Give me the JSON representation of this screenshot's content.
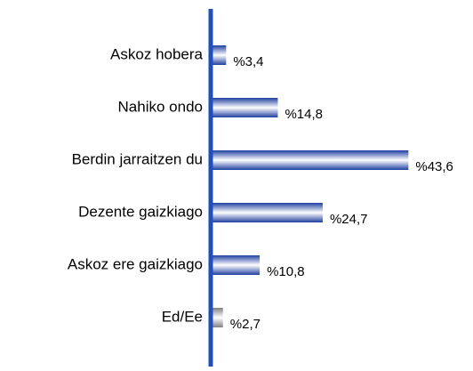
{
  "chart_data": {
    "type": "bar",
    "orientation": "horizontal",
    "categories": [
      "Askoz hobera",
      "Nahiko ondo",
      "Berdin jarraitzen du",
      "Dezente gaizkiago",
      "Askoz ere gaizkiago",
      "Ed/Ee"
    ],
    "values": [
      3.4,
      14.8,
      43.6,
      24.7,
      10.8,
      2.7
    ],
    "value_labels": [
      "%3,4",
      "%14,8",
      "%43,6",
      "%24,7",
      "%10,8",
      "%2,7"
    ],
    "colors": [
      "#1f3f9f",
      "#1f3f9f",
      "#1f3f9f",
      "#1f3f9f",
      "#1f3f9f",
      "#808080"
    ],
    "axis_color": "#1f4fbf",
    "xlim": [
      0,
      50
    ]
  }
}
